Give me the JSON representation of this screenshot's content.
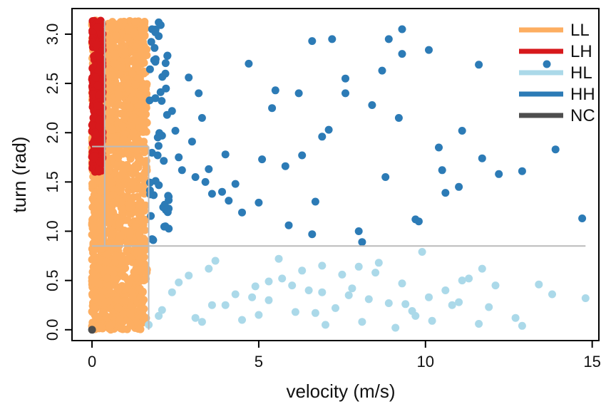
{
  "chart_data": {
    "type": "scatter",
    "title": "",
    "xlabel": "velocity (m/s)",
    "ylabel": "turn (rad)",
    "xlim": [
      -0.6,
      15.2
    ],
    "ylim": [
      -0.11,
      3.26
    ],
    "x_ticks": [
      0,
      5,
      10,
      15
    ],
    "x_tick_labels": [
      "0",
      "5",
      "10",
      "15"
    ],
    "y_ticks": [
      0.0,
      0.5,
      1.0,
      1.5,
      2.0,
      2.5,
      3.0
    ],
    "y_tick_labels": [
      "0.0",
      "0.5",
      "1.0",
      "1.5",
      "2.0",
      "2.5",
      "3.0"
    ],
    "grid": false,
    "legend_position": "top-right",
    "colors": {
      "LL": "#FDAE61",
      "LH": "#D7191C",
      "HL": "#ABD9E9",
      "HH": "#2C7BB6",
      "NC": "#4D4D4D",
      "threshold": "#BBBBBB"
    },
    "legend": [
      {
        "label": "LL",
        "style": "line"
      },
      {
        "label": "LH",
        "style": "line"
      },
      {
        "label": "HL",
        "style": "line-point"
      },
      {
        "label": "HH",
        "style": "line"
      },
      {
        "label": "NC",
        "style": "line"
      }
    ],
    "threshold_lines": [
      {
        "type": "h",
        "x0": 0,
        "x1": 14.8,
        "y": 0.85
      },
      {
        "type": "h",
        "x0": 0,
        "x1": 1.7,
        "y": 1.86
      },
      {
        "type": "v",
        "x": 0.38,
        "y0": 0.85,
        "y1": 3.14
      },
      {
        "type": "v",
        "x": 1.7,
        "y0": 0,
        "y1": 1.86
      }
    ],
    "series": [
      {
        "name": "LL",
        "color": "#FDAE61",
        "region": {
          "x": [
            0.0,
            1.7
          ],
          "y": [
            0.0,
            3.14
          ]
        },
        "approx_points": 1500
      },
      {
        "name": "LH",
        "color": "#D7191C",
        "region": {
          "x": [
            0.0,
            0.38
          ],
          "y": [
            1.6,
            3.14
          ]
        },
        "approx_points": 350
      },
      {
        "name": "HL",
        "color": "#ABD9E9",
        "x": [
          1.7,
          2.4,
          3.1,
          3.5,
          4.0,
          4.5,
          4.9,
          5.3,
          5.7,
          6.1,
          6.5,
          6.9,
          7.3,
          7.7,
          8.1,
          8.5,
          8.9,
          9.3,
          9.7,
          10.1,
          10.6,
          11.1,
          11.6,
          12.1,
          12.7,
          13.4,
          14.8,
          2.1,
          2.9,
          3.7,
          4.3,
          5.0,
          5.6,
          6.3,
          7.0,
          7.8,
          8.6,
          9.4,
          10.2,
          11.0,
          11.9,
          12.9,
          2.6,
          3.3,
          4.8,
          6.0,
          6.7,
          7.5,
          8.3,
          9.1,
          9.9,
          10.8,
          11.7,
          13.8,
          2.0,
          3.6,
          5.3,
          6.9,
          8.0,
          9.6,
          11.3
        ],
        "y": [
          0.05,
          0.38,
          0.12,
          0.62,
          0.25,
          0.1,
          0.44,
          0.3,
          0.52,
          0.18,
          0.4,
          0.65,
          0.22,
          0.35,
          0.08,
          0.58,
          0.27,
          0.47,
          0.14,
          0.33,
          0.4,
          0.5,
          0.06,
          0.45,
          0.12,
          0.46,
          0.32,
          0.2,
          0.55,
          0.7,
          0.36,
          0.15,
          0.72,
          0.6,
          0.05,
          0.42,
          0.68,
          0.26,
          0.09,
          0.28,
          0.23,
          0.04,
          0.48,
          0.08,
          0.33,
          0.45,
          0.17,
          0.56,
          0.31,
          0.02,
          0.79,
          0.25,
          0.62,
          0.36,
          0.14,
          0.25,
          0.49,
          0.38,
          0.64,
          0.19,
          0.52
        ]
      },
      {
        "name": "HH",
        "color": "#2C7BB6",
        "x": [
          1.8,
          2.0,
          2.2,
          2.4,
          2.6,
          2.9,
          3.2,
          3.5,
          3.9,
          4.3,
          4.7,
          5.1,
          5.5,
          5.9,
          6.3,
          6.6,
          6.9,
          7.2,
          7.6,
          8.0,
          8.4,
          8.8,
          9.3,
          9.7,
          10.1,
          10.6,
          11.1,
          11.6,
          12.2,
          12.9,
          13.9,
          14.7,
          1.9,
          2.1,
          2.3,
          2.7,
          3.0,
          3.3,
          3.6,
          4.0,
          4.5,
          5.0,
          5.4,
          5.8,
          6.2,
          6.7,
          7.1,
          7.6,
          8.1,
          8.7,
          9.2,
          9.8,
          10.4,
          11.0,
          11.7,
          1.8,
          2.2,
          2.5,
          3.1,
          4.1,
          6.6,
          8.9,
          2.0,
          1.9,
          2.3,
          3.4,
          9.3,
          10.5
        ],
        "y": [
          3.05,
          2.98,
          2.6,
          2.22,
          1.75,
          2.56,
          2.4,
          1.63,
          1.4,
          1.48,
          2.7,
          1.73,
          2.43,
          1.06,
          1.77,
          2.93,
          1.96,
          2.95,
          2.4,
          1.0,
          2.28,
          1.55,
          3.05,
          1.12,
          2.84,
          1.39,
          2.02,
          2.69,
          1.58,
          1.61,
          1.83,
          1.13,
          2.35,
          1.97,
          1.23,
          1.62,
          1.91,
          2.15,
          1.38,
          1.78,
          1.19,
          1.29,
          2.25,
          1.66,
          2.4,
          1.3,
          2.03,
          2.55,
          0.89,
          2.63,
          2.15,
          1.1,
          1.85,
          1.45,
          1.74,
          0.92,
          1.05,
          2.02,
          1.55,
          1.31,
          0.97,
          2.95,
          3.12,
          2.72,
          1.35,
          1.5,
          2.8,
          1.62
        ]
      },
      {
        "name": "NC",
        "color": "#4D4D4D",
        "x": [
          0.0
        ],
        "y": [
          0.0
        ]
      }
    ]
  }
}
